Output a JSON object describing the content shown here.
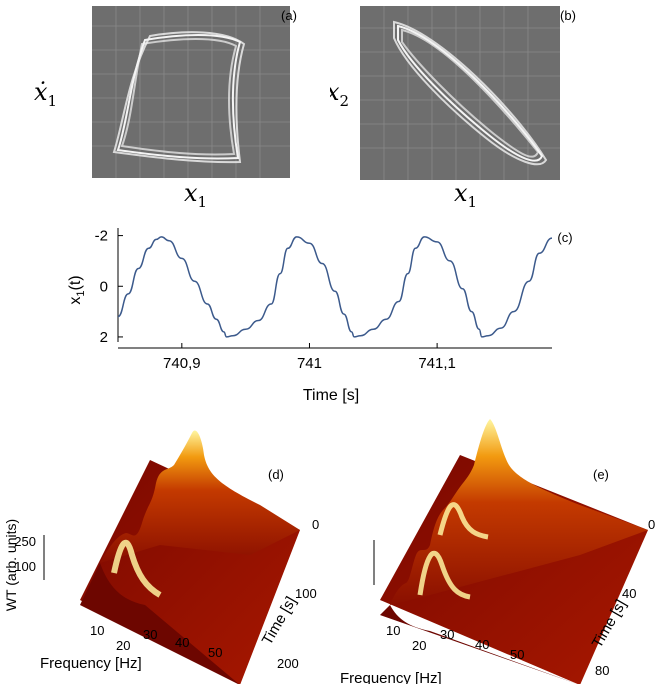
{
  "figure": {
    "panel_a": {
      "tag": "(a)",
      "ylabel": "ẋ",
      "ylabel_sub": "1",
      "xlabel": "x",
      "xlabel_sub": "1"
    },
    "panel_b": {
      "tag": "(b)",
      "ylabel": "x",
      "ylabel_sub": "2",
      "xlabel": "x",
      "xlabel_sub": "1"
    },
    "panel_d": {
      "tag": "(d)"
    },
    "panel_e": {
      "tag": "(e)"
    }
  },
  "chart_data": [
    {
      "type": "line",
      "panel": "(c)",
      "title": "",
      "xlabel": "Time [s]",
      "ylabel": "x",
      "ylabel_sub": "1",
      "ylabel_suffix": "(t)",
      "x_ticks": [
        "740,9",
        "741",
        "741,1"
      ],
      "x_tick_values": [
        740.9,
        741.0,
        741.1
      ],
      "y_ticks": [
        "-2",
        "0",
        "2"
      ],
      "y_tick_values": [
        -2,
        0,
        2
      ],
      "xlim": [
        740.85,
        741.19
      ],
      "ylim": [
        -2.3,
        2.2
      ],
      "y_inverted": true,
      "line_color": "#3c5a8c",
      "series": [
        {
          "x": [
            740.85,
            740.858,
            740.866,
            740.874,
            740.88,
            740.884,
            740.89,
            740.9,
            740.91,
            740.92,
            740.927,
            740.933,
            740.935,
            740.94,
            740.95,
            740.96,
            740.97,
            740.977,
            740.983,
            740.99,
            741.0,
            741.01,
            741.02,
            741.027,
            741.033,
            741.035,
            741.04,
            741.05,
            741.06,
            741.07,
            741.077,
            741.083,
            741.09,
            741.1,
            741.11,
            741.12,
            741.127,
            741.133,
            741.135,
            741.14,
            741.15,
            741.16,
            741.172,
            741.18,
            741.19
          ],
          "y": [
            1.2,
            0.3,
            -0.7,
            -1.5,
            -1.85,
            -1.95,
            -1.8,
            -1.1,
            -0.2,
            0.7,
            1.3,
            1.8,
            2.0,
            1.95,
            1.7,
            1.35,
            0.7,
            -0.5,
            -1.5,
            -1.95,
            -1.7,
            -0.9,
            0.2,
            1.1,
            1.8,
            2.0,
            1.95,
            1.7,
            1.3,
            0.6,
            -0.5,
            -1.5,
            -1.95,
            -1.75,
            -1.0,
            0.1,
            1.0,
            1.7,
            2.0,
            1.95,
            1.65,
            1.0,
            -0.2,
            -1.3,
            -1.9
          ]
        }
      ]
    },
    {
      "type": "surface",
      "panel": "(d)",
      "title": "",
      "zlabel": "WT (arb. units)",
      "xlabel": "Frequency [Hz]",
      "ylabel": "Time [s]",
      "x_ticks": [
        "10",
        "20",
        "30",
        "40",
        "50"
      ],
      "y_ticks": [
        "0",
        "100",
        "200"
      ],
      "z_ticks": [
        "250",
        "100"
      ],
      "colormap": "hot"
    },
    {
      "type": "surface",
      "panel": "(e)",
      "title": "",
      "xlabel": "Frequency [Hz]",
      "ylabel": "Time [s]",
      "x_ticks": [
        "10",
        "20",
        "30",
        "40",
        "50"
      ],
      "y_ticks": [
        "0",
        "40",
        "80"
      ],
      "colormap": "hot"
    }
  ]
}
